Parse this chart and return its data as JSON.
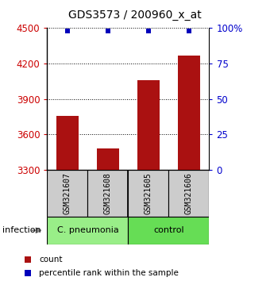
{
  "title": "GDS3573 / 200960_x_at",
  "samples": [
    "GSM321607",
    "GSM321608",
    "GSM321605",
    "GSM321606"
  ],
  "counts": [
    3760,
    3480,
    4060,
    4270
  ],
  "percentiles": [
    98,
    98,
    98,
    98
  ],
  "ylim": [
    3300,
    4500
  ],
  "yticks": [
    3300,
    3600,
    3900,
    4200,
    4500
  ],
  "right_yticks": [
    0,
    25,
    50,
    75,
    100
  ],
  "right_ylabels": [
    "0",
    "25",
    "50",
    "75",
    "100%"
  ],
  "bar_color": "#aa1111",
  "dot_color": "#0000bb",
  "groups": [
    {
      "label": "C. pneumonia",
      "samples": [
        0,
        1
      ],
      "color": "#99ee88"
    },
    {
      "label": "control",
      "samples": [
        2,
        3
      ],
      "color": "#66dd55"
    }
  ],
  "group_row_label": "infection",
  "legend_items": [
    {
      "color": "#aa1111",
      "label": "count"
    },
    {
      "color": "#0000bb",
      "label": "percentile rank within the sample"
    }
  ],
  "sample_box_color": "#cccccc",
  "left_label_color": "#cc0000",
  "right_label_color": "#0000cc",
  "bar_width": 0.55,
  "dot_size": 25,
  "fig_width": 3.4,
  "fig_height": 3.54
}
